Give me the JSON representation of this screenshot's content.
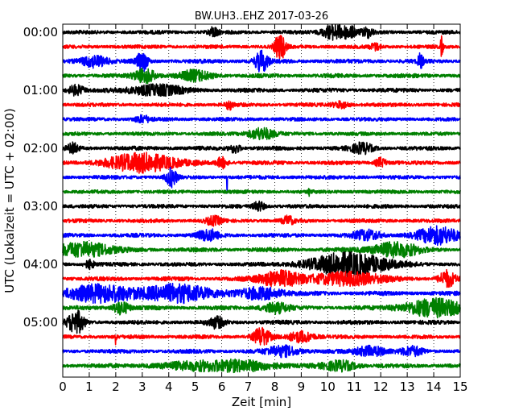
{
  "chart_data": {
    "type": "line",
    "title": "BW.UH3..EHZ 2017-03-26",
    "xlabel": "Zeit  [min]",
    "ylabel": "UTC (Lokalzeit = UTC + 02:00)",
    "xlim": [
      0,
      15
    ],
    "x_ticks": [
      "0",
      "1",
      "2",
      "3",
      "4",
      "5",
      "6",
      "7",
      "8",
      "9",
      "10",
      "11",
      "12",
      "13",
      "14",
      "15"
    ],
    "y_tick_labels": [
      "00:00",
      "01:00",
      "02:00",
      "03:00",
      "04:00",
      "05:00"
    ],
    "grid": "vertical dotted",
    "trace_colors": [
      "#000000",
      "#ff0000",
      "#0000ff",
      "#008000"
    ],
    "traces_per_label": 4,
    "traces": [
      {
        "start": "00:00",
        "noise": 0.35,
        "events": [
          [
            5.7,
            0.18,
            1.5
          ],
          [
            10.2,
            0.4,
            2.2
          ],
          [
            10.8,
            0.3,
            1.7
          ],
          [
            11.5,
            0.2,
            1.5
          ]
        ]
      },
      {
        "start": "00:15",
        "noise": 0.3,
        "events": [
          [
            8.2,
            0.2,
            4.0
          ],
          [
            11.8,
            0.2,
            1.0
          ],
          [
            14.3,
            0.05,
            3.0
          ]
        ]
      },
      {
        "start": "00:30",
        "noise": 0.45,
        "events": [
          [
            1.2,
            0.5,
            1.8
          ],
          [
            3.0,
            0.2,
            3.0
          ],
          [
            7.5,
            0.25,
            3.2
          ],
          [
            13.5,
            0.1,
            2.2
          ]
        ]
      },
      {
        "start": "00:45",
        "noise": 0.45,
        "events": [
          [
            3.1,
            0.4,
            2.2
          ],
          [
            5.0,
            0.6,
            1.5
          ]
        ]
      },
      {
        "start": "01:00",
        "noise": 0.45,
        "events": [
          [
            0.5,
            0.3,
            1.5
          ],
          [
            3.5,
            1.0,
            1.6
          ]
        ]
      },
      {
        "start": "01:15",
        "noise": 0.35,
        "events": [
          [
            6.3,
            0.15,
            1.3
          ],
          [
            10.5,
            0.3,
            1.0
          ]
        ]
      },
      {
        "start": "01:30",
        "noise": 0.3,
        "events": [
          [
            3.0,
            0.3,
            1.0
          ]
        ]
      },
      {
        "start": "01:45",
        "noise": 0.3,
        "events": [
          [
            7.5,
            0.5,
            1.8
          ]
        ]
      },
      {
        "start": "02:00",
        "noise": 0.45,
        "events": [
          [
            0.4,
            0.2,
            1.5
          ],
          [
            6.5,
            0.2,
            1.4
          ],
          [
            11.3,
            0.4,
            1.5
          ]
        ]
      },
      {
        "start": "02:15",
        "noise": 0.4,
        "events": [
          [
            3.0,
            1.3,
            2.8
          ],
          [
            6.0,
            0.2,
            1.6
          ],
          [
            12.0,
            0.2,
            1.4
          ]
        ]
      },
      {
        "start": "02:30",
        "noise": 0.35,
        "events": [
          [
            4.1,
            0.2,
            2.8
          ],
          [
            6.2,
            0.02,
            7.0
          ]
        ]
      },
      {
        "start": "02:45",
        "noise": 0.3,
        "events": [
          [
            9.3,
            0.02,
            3.5
          ]
        ]
      },
      {
        "start": "03:00",
        "noise": 0.35,
        "events": [
          [
            7.4,
            0.2,
            1.5
          ]
        ]
      },
      {
        "start": "03:15",
        "noise": 0.35,
        "events": [
          [
            5.7,
            0.3,
            1.2
          ],
          [
            8.5,
            0.2,
            1.3
          ]
        ]
      },
      {
        "start": "03:30",
        "noise": 0.4,
        "events": [
          [
            5.5,
            0.4,
            1.6
          ],
          [
            11.5,
            0.5,
            1.5
          ],
          [
            14.2,
            0.8,
            2.6
          ]
        ]
      },
      {
        "start": "03:45",
        "noise": 0.5,
        "events": [
          [
            0.8,
            1.0,
            2.3
          ],
          [
            12.5,
            0.9,
            2.2
          ]
        ]
      },
      {
        "start": "04:00",
        "noise": 0.35,
        "events": [
          [
            1.0,
            0.2,
            1.2
          ],
          [
            10.8,
            1.5,
            3.4
          ]
        ]
      },
      {
        "start": "04:15",
        "noise": 0.45,
        "events": [
          [
            8.2,
            0.8,
            2.4
          ],
          [
            10.8,
            1.3,
            2.0
          ],
          [
            14.5,
            0.3,
            2.4
          ]
        ]
      },
      {
        "start": "04:30",
        "noise": 0.5,
        "events": [
          [
            1.5,
            1.5,
            2.5
          ],
          [
            4.5,
            1.2,
            2.6
          ],
          [
            7.5,
            0.8,
            1.8
          ]
        ]
      },
      {
        "start": "04:45",
        "noise": 0.45,
        "events": [
          [
            2.2,
            0.3,
            2.0
          ],
          [
            8.0,
            0.5,
            1.6
          ],
          [
            14.0,
            1.2,
            2.6
          ]
        ]
      },
      {
        "start": "05:00",
        "noise": 0.45,
        "events": [
          [
            0.5,
            0.3,
            3.5
          ],
          [
            5.8,
            0.3,
            1.6
          ]
        ]
      },
      {
        "start": "05:15",
        "noise": 0.35,
        "events": [
          [
            2.0,
            0.02,
            3.0
          ],
          [
            7.5,
            0.3,
            2.8
          ],
          [
            9.0,
            0.5,
            1.6
          ]
        ]
      },
      {
        "start": "05:30",
        "noise": 0.4,
        "events": [
          [
            8.3,
            0.6,
            1.6
          ],
          [
            11.6,
            0.6,
            1.5
          ],
          [
            13.2,
            0.4,
            1.3
          ]
        ]
      },
      {
        "start": "05:45",
        "noise": 0.5,
        "events": [
          [
            6.0,
            2.0,
            1.6
          ],
          [
            10.5,
            0.6,
            1.4
          ]
        ]
      }
    ]
  }
}
